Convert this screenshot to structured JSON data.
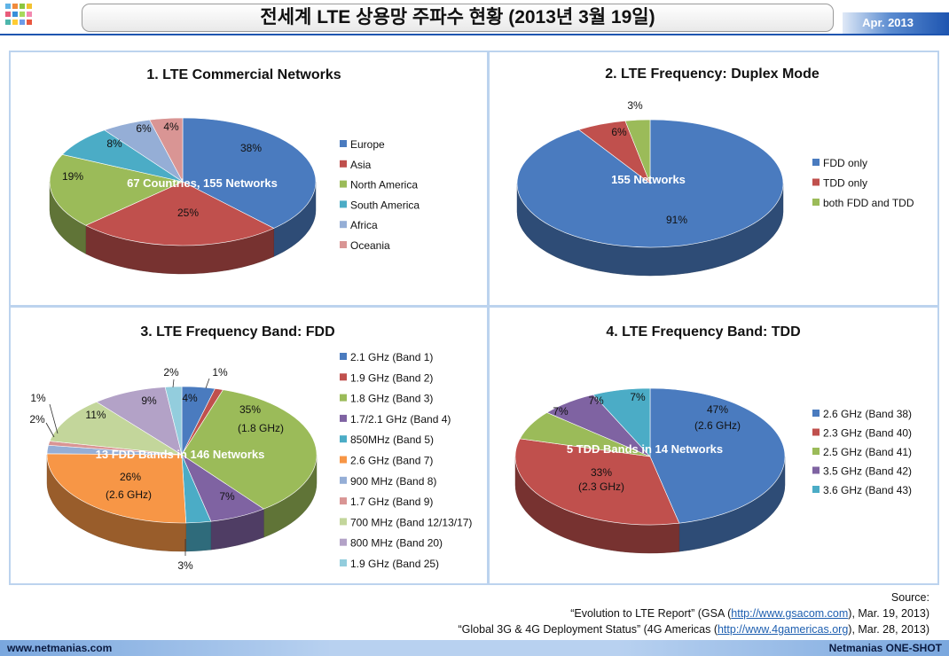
{
  "header": {
    "title": "전세계 LTE 상용망 주파수 현황 (2013년 3월 19일)",
    "date": "Apr. 2013",
    "logo_colors": [
      "#5fb3e6",
      "#f08a3c",
      "#8cc63f",
      "#f2c230",
      "#e85c7a",
      "#3a8fd9",
      "#a7d95b",
      "#f28ab0",
      "#4db6ac",
      "#ffcc33",
      "#6d9be8",
      "#e9573f"
    ]
  },
  "chart_data": [
    {
      "type": "pie",
      "title": "1. LTE Commercial Networks",
      "center_label": "67 Countries, 155 Networks",
      "slices": [
        {
          "name": "Europe",
          "value": 38,
          "label": "38%",
          "color": "#4a7bbf"
        },
        {
          "name": "Asia",
          "value": 25,
          "label": "25%",
          "color": "#c0504d"
        },
        {
          "name": "North America",
          "value": 19,
          "label": "19%",
          "color": "#9bbb59"
        },
        {
          "name": "South America",
          "value": 8,
          "label": "8%",
          "color": "#4bacc6"
        },
        {
          "name": "Africa",
          "value": 6,
          "label": "6%",
          "color": "#95aed6"
        },
        {
          "name": "Oceania",
          "value": 4,
          "label": "4%",
          "color": "#d99594"
        }
      ]
    },
    {
      "type": "pie",
      "title": "2. LTE Frequency: Duplex Mode",
      "center_label": "155 Networks",
      "slices": [
        {
          "name": "FDD only",
          "value": 91,
          "label": "91%",
          "color": "#4a7bbf"
        },
        {
          "name": "TDD only",
          "value": 6,
          "label": "6%",
          "color": "#c0504d"
        },
        {
          "name": "both FDD and TDD",
          "value": 3,
          "label": "3%",
          "color": "#9bbb59"
        }
      ]
    },
    {
      "type": "pie",
      "title": "3. LTE Frequency Band: FDD",
      "center_label": "13 FDD Bands in 146 Networks",
      "slices": [
        {
          "name": "2.1 GHz (Band 1)",
          "value": 4,
          "label": "4%",
          "color": "#4a7bbf"
        },
        {
          "name": "1.9 GHz (Band 2)",
          "value": 1,
          "label": "1%",
          "color": "#c0504d"
        },
        {
          "name": "1.8 GHz (Band 3)",
          "value": 35,
          "label": "35%",
          "sublabel": "(1.8 GHz)",
          "color": "#9bbb59"
        },
        {
          "name": "1.7/2.1 GHz (Band 4)",
          "value": 7,
          "label": "7%",
          "color": "#7f63a2"
        },
        {
          "name": "850MHz (Band 5)",
          "value": 3,
          "label": "3%",
          "color": "#4bacc6"
        },
        {
          "name": "2.6 GHz (Band 7)",
          "value": 26,
          "label": "26%",
          "sublabel": "(2.6 GHz)",
          "color": "#f79646"
        },
        {
          "name": "900 MHz (Band 8)",
          "value": 2,
          "label": "2%",
          "color": "#95aed6"
        },
        {
          "name": "1.7 GHz (Band 9)",
          "value": 1,
          "label": "1%",
          "color": "#d99594"
        },
        {
          "name": "700 MHz (Band 12/13/17)",
          "value": 11,
          "label": "11%",
          "color": "#c3d69b"
        },
        {
          "name": "800 MHz (Band 20)",
          "value": 9,
          "label": "9%",
          "color": "#b3a2c7"
        },
        {
          "name": "1.9 GHz (Band 25)",
          "value": 2,
          "label": "2%",
          "color": "#93cddd"
        }
      ]
    },
    {
      "type": "pie",
      "title": "4. LTE Frequency Band: TDD",
      "center_label": "5 TDD Bands in 14 Networks",
      "slices": [
        {
          "name": "2.6 GHz (Band 38)",
          "value": 47,
          "label": "47%",
          "sublabel": "(2.6 GHz)",
          "color": "#4a7bbf"
        },
        {
          "name": "2.3 GHz (Band 40)",
          "value": 33,
          "label": "33%",
          "sublabel": "(2.3 GHz)",
          "color": "#c0504d"
        },
        {
          "name": "2.5 GHz (Band 41)",
          "value": 7,
          "label": "7%",
          "color": "#9bbb59"
        },
        {
          "name": "3.5 GHz (Band 42)",
          "value": 7,
          "label": "7%",
          "color": "#7f63a2"
        },
        {
          "name": "3.6 GHz (Band 43)",
          "value": 7,
          "label": "7%",
          "color": "#4bacc6"
        }
      ]
    }
  ],
  "source": {
    "heading": "Source:",
    "line1_pre": "“Evolution to LTE Report” (GSA (",
    "line1_link": "http://www.gsacom.com",
    "line1_post": "), Mar. 19, 2013)",
    "line2_pre": "“Global 3G & 4G Deployment Status” (4G Americas (",
    "line2_link": "http://www.4gamericas.org",
    "line2_post": "), Mar. 28, 2013)"
  },
  "footer": {
    "left": "www.netmanias.com",
    "right": "Netmanias ONE-SHOT"
  }
}
